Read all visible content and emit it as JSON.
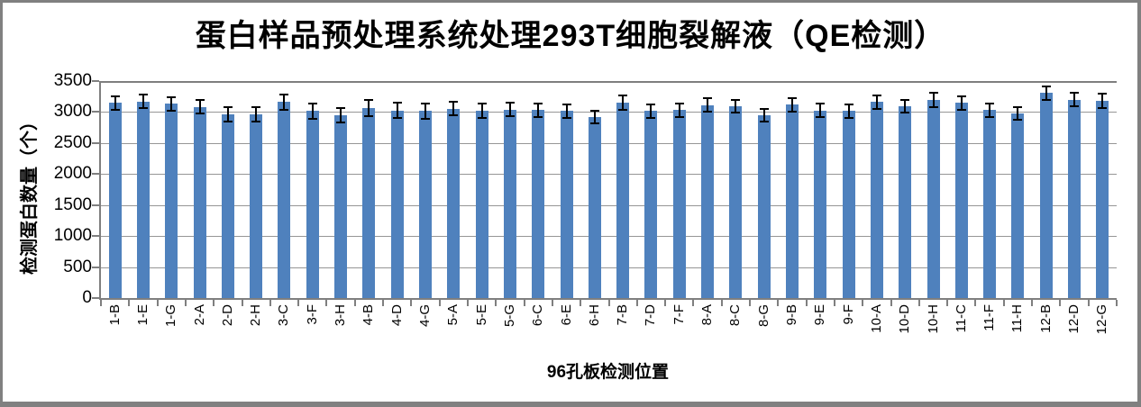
{
  "chart_data": {
    "type": "bar",
    "title": "蛋白样品预处理系统处理293T细胞裂解液（QE检测）",
    "xlabel": "96孔板检测位置",
    "ylabel": "检测蛋白数量（个）",
    "categories": [
      "1-B",
      "1-E",
      "1-G",
      "2-A",
      "2-D",
      "2-H",
      "3-C",
      "3-F",
      "3-H",
      "4-B",
      "4-D",
      "4-G",
      "5-A",
      "5-E",
      "5-G",
      "6-C",
      "6-E",
      "6-H",
      "7-B",
      "7-D",
      "7-F",
      "8-A",
      "8-C",
      "8-G",
      "9-B",
      "9-E",
      "9-F",
      "10-A",
      "10-D",
      "10-H",
      "11-C",
      "11-F",
      "11-H",
      "12-B",
      "12-D",
      "12-G"
    ],
    "values": [
      3150,
      3170,
      3135,
      3085,
      2960,
      2965,
      3160,
      3015,
      2950,
      3065,
      3025,
      3015,
      3055,
      3015,
      3040,
      3030,
      3015,
      2920,
      3150,
      3015,
      3030,
      3110,
      3095,
      2945,
      3120,
      3025,
      3015,
      3160,
      3095,
      3200,
      3150,
      3030,
      2975,
      3305,
      3200,
      3185
    ],
    "errors": [
      110,
      105,
      110,
      115,
      115,
      120,
      125,
      120,
      120,
      125,
      125,
      120,
      110,
      115,
      110,
      105,
      110,
      105,
      115,
      110,
      105,
      110,
      105,
      105,
      110,
      110,
      105,
      110,
      105,
      115,
      110,
      105,
      105,
      110,
      110,
      115
    ],
    "yticks": [
      0,
      500,
      1000,
      1500,
      2000,
      2500,
      3000,
      3500
    ],
    "ylim": [
      0,
      3500
    ],
    "grid": "horizontal",
    "legend": "none",
    "bar_color": "#4F81BD",
    "error_bar_color": "#000000",
    "gridline_color": "#969696",
    "axis_color": "#7F7F7F",
    "border_color": "#808080",
    "background_color": "#FFFFFF"
  }
}
